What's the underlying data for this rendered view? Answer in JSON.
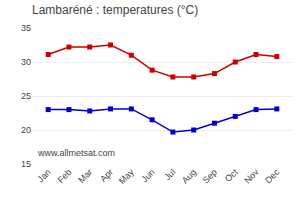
{
  "chart_data": {
    "type": "line",
    "title": "Lambaréné : temperatures (°C)",
    "categories": [
      "Jan",
      "Feb",
      "Mar",
      "Apr",
      "May",
      "Jun",
      "Jul",
      "Aug",
      "Sep",
      "Oct",
      "Nov",
      "Dec"
    ],
    "series": [
      {
        "color": "#cc0000",
        "marker": "square",
        "values": [
          31.1,
          32.2,
          32.2,
          32.5,
          31.0,
          28.8,
          27.8,
          27.8,
          28.3,
          30.0,
          31.1,
          30.8
        ]
      },
      {
        "color": "#0000cc",
        "marker": "square",
        "values": [
          23.0,
          23.0,
          22.8,
          23.1,
          23.1,
          21.5,
          19.7,
          20.0,
          21.0,
          22.0,
          23.0,
          23.1
        ]
      }
    ],
    "ylim": [
      15,
      35
    ],
    "yticks": [
      15,
      20,
      25,
      30,
      35
    ],
    "grid": true,
    "annotations": [
      "www.allmetsat.com"
    ]
  }
}
